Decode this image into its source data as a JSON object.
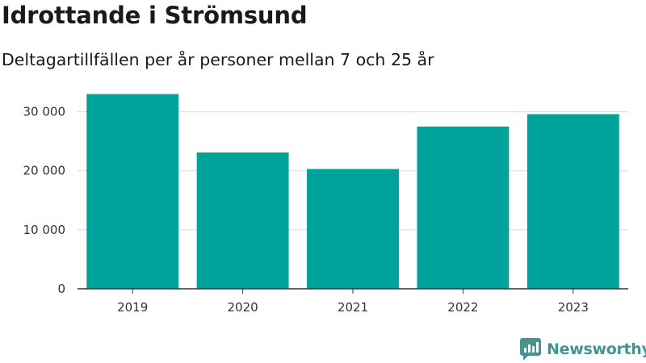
{
  "title": "Idrottande i Strömsund",
  "subtitle": "Deltagartillfällen per år personer mellan 7 och 25 år",
  "brand": {
    "name": "Newsworthy",
    "logo": "newsworthy-logo-icon",
    "color": "#45958f"
  },
  "chart_data": {
    "type": "bar",
    "categories": [
      "2019",
      "2020",
      "2021",
      "2022",
      "2023"
    ],
    "values": [
      33000,
      23100,
      20300,
      27500,
      29600
    ],
    "ylim": [
      0,
      35000
    ],
    "yticks": [
      0,
      10000,
      20000,
      30000
    ],
    "ytick_labels": [
      "0",
      "10 000",
      "20 000",
      "30 000"
    ],
    "xlabel": "",
    "ylabel": "",
    "grid": true,
    "bar_color": "#00a39a"
  }
}
